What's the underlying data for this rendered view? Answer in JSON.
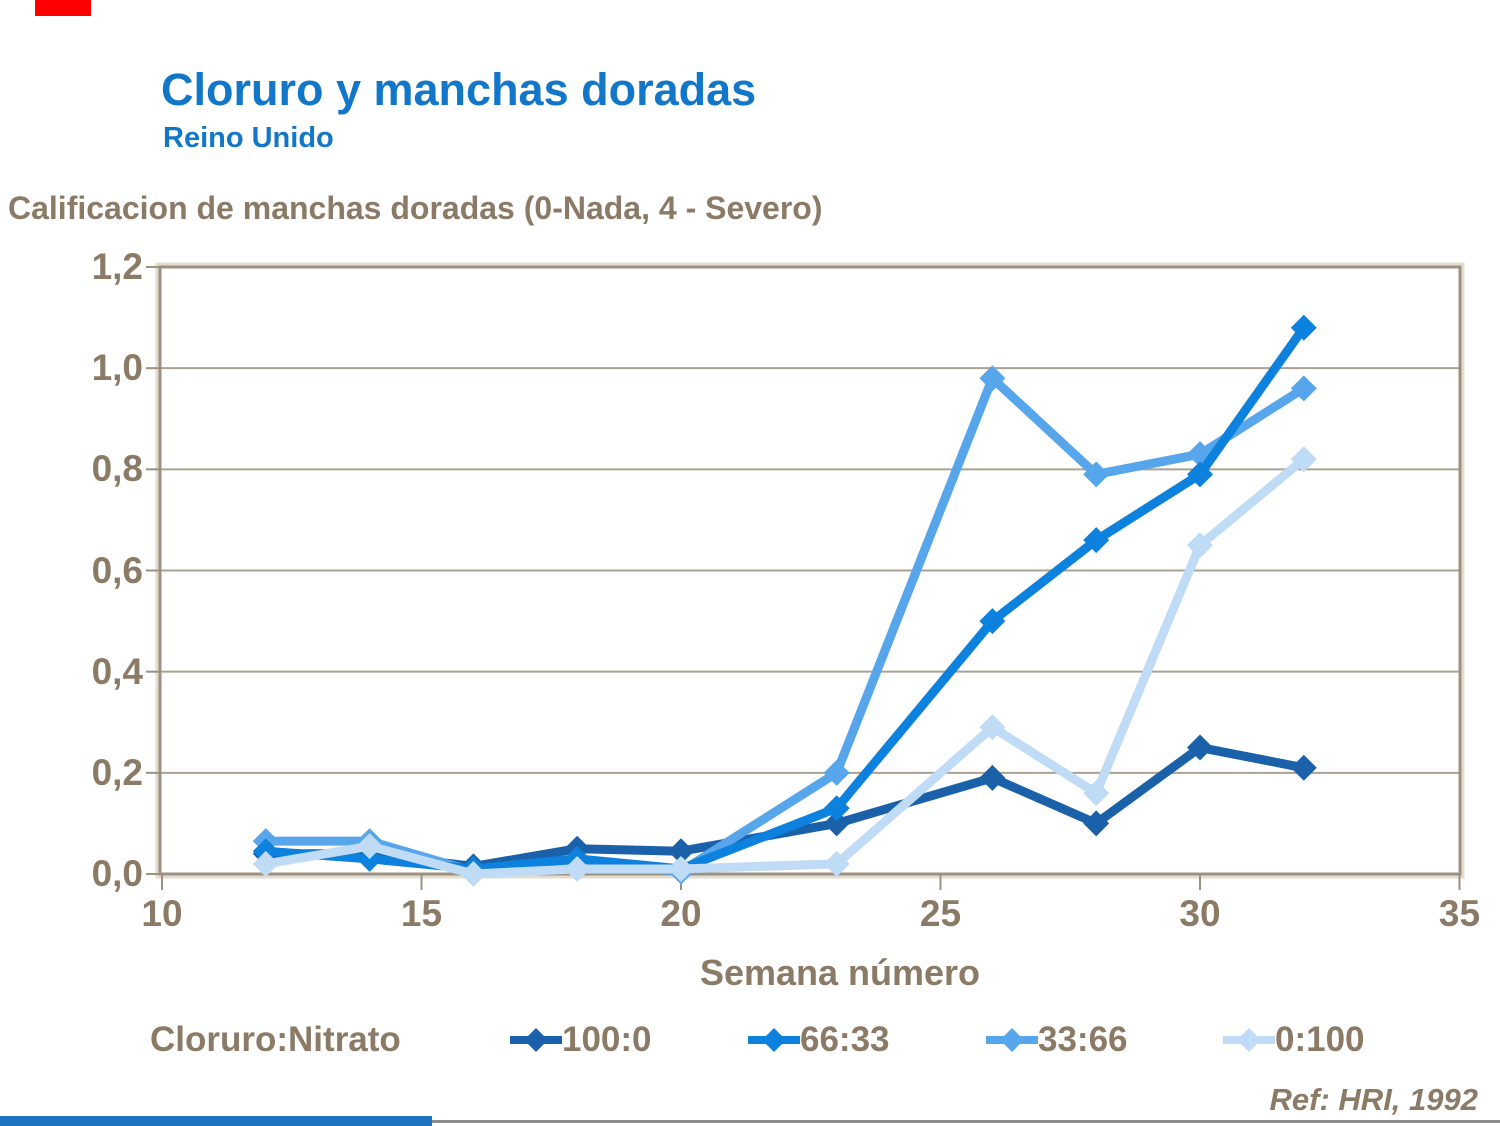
{
  "slide": {
    "title": "Cloruro y manchas doradas",
    "subtitle": "Reino Unido",
    "axis_title": "Calificacion de manchas doradas (0-Nada, 4 - Severo)",
    "x_axis_label": "Semana número",
    "legend_title": "Cloruro:Nitrato",
    "reference": "Ref: HRI, 1992",
    "colors": {
      "title_blue": "#1277C8",
      "text_brown": "#8A7A66",
      "gridline": "#ABA193",
      "frame": "#9C9181",
      "frame_highlight": "#E3DDD1",
      "red_bar": "#FE0000",
      "bottom_bar_blue": "#1F72C0",
      "bottom_line_gray": "#8C8C8C"
    }
  },
  "chart_data": {
    "type": "line",
    "title": "Calificacion de manchas doradas (0-Nada, 4 - Severo)",
    "xlabel": "Semana número",
    "ylabel": "",
    "xlim": [
      10,
      35
    ],
    "ylim": [
      0,
      1.2
    ],
    "x_ticks": [
      "10",
      "15",
      "20",
      "25",
      "30",
      "35"
    ],
    "y_ticks": [
      "0,0",
      "0,2",
      "0,4",
      "0,6",
      "0,8",
      "1,0",
      "1,2"
    ],
    "grid": "horizontal",
    "legend_position": "bottom",
    "legend_title": "Cloruro:Nitrato",
    "x": [
      12,
      14,
      16,
      18,
      20,
      23,
      26,
      28,
      30,
      32
    ],
    "series": [
      {
        "name": "100:0",
        "color": "#1A61A9",
        "values": [
          0.04,
          0.04,
          0.015,
          0.05,
          0.045,
          0.1,
          0.19,
          0.1,
          0.25,
          0.21
        ]
      },
      {
        "name": "66:33",
        "color": "#0C81DE",
        "values": [
          0.045,
          0.03,
          0.01,
          0.03,
          0.01,
          0.13,
          0.5,
          0.66,
          0.79,
          1.08
        ]
      },
      {
        "name": "33:66",
        "color": "#57A6EC",
        "values": [
          0.065,
          0.065,
          0.005,
          0.025,
          0.005,
          0.2,
          0.98,
          0.79,
          0.83,
          0.96
        ]
      },
      {
        "name": "0:100",
        "color": "#BFDBF6",
        "values": [
          0.02,
          0.055,
          0.0,
          0.01,
          0.01,
          0.02,
          0.29,
          0.16,
          0.65,
          0.82
        ]
      }
    ],
    "draw_order": [
      "100:0",
      "33:66",
      "66:33",
      "0:100"
    ]
  }
}
